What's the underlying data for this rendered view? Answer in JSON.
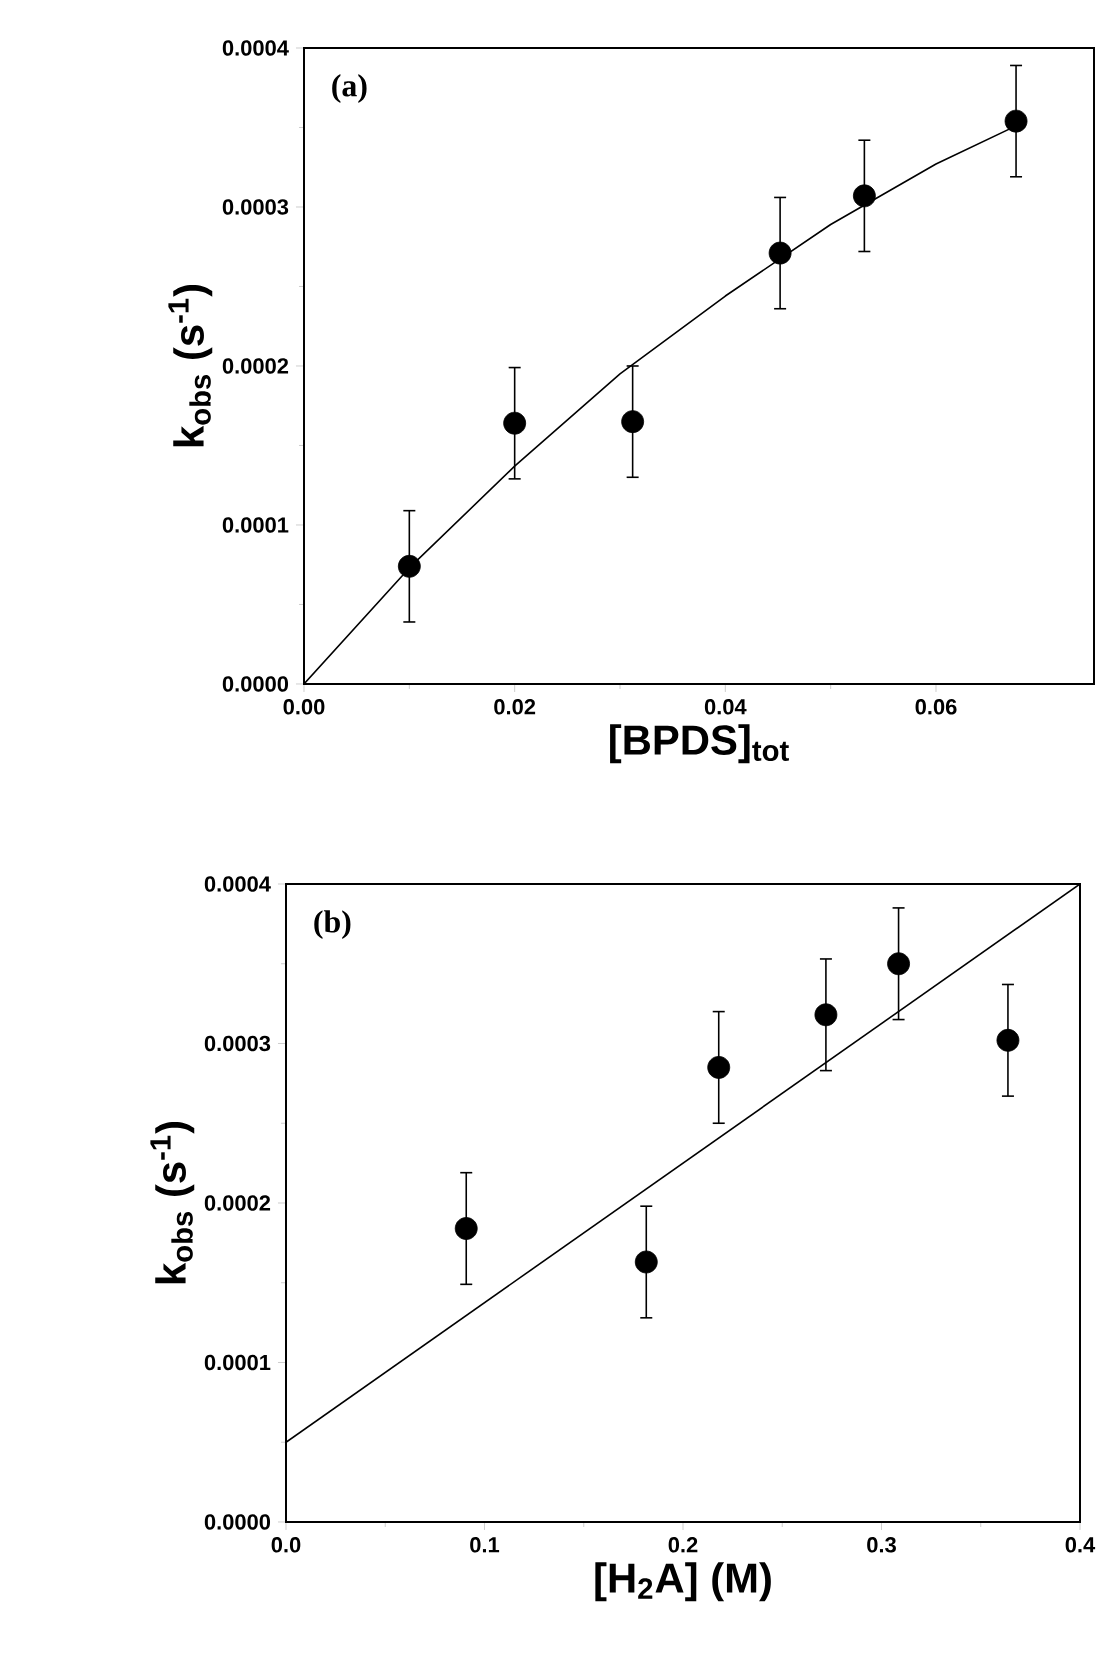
{
  "chart_data": [
    {
      "type": "scatter",
      "xlabel": "[BPDS]$_{tot}$",
      "ylabel": "k$_{obs}$ (s$^{-1}$)",
      "annotations": [
        "(a)"
      ],
      "xlim": [
        0,
        0.075
      ],
      "ylim": [
        0,
        0.0004
      ],
      "xticks": [
        {
          "value": 0,
          "label": "0.00"
        },
        {
          "value": 0.02,
          "label": "0.02"
        },
        {
          "value": 0.04,
          "label": "0.04"
        },
        {
          "value": 0.06,
          "label": "0.06"
        }
      ],
      "yticks": [
        {
          "value": 0,
          "label": "0.0000"
        },
        0.0001,
        0.0002,
        0.0003,
        0.0004
      ],
      "series": [
        {
          "color": "#000000",
          "marker": "circle",
          "x": [
            0.01,
            0.02,
            0.0312,
            0.0452,
            0.0532,
            0.0676
          ],
          "values": [
            7.4e-05,
            0.000164,
            0.000165,
            0.000271,
            0.000307,
            0.000354
          ],
          "errors": [
            3.5e-05,
            3.5e-05,
            3.5e-05,
            3.5e-05,
            3.5e-05,
            3.5e-05
          ]
        },
        {
          "type": "line",
          "color": "#000000",
          "marker": "none",
          "line_style": "solid",
          "x": [
            0,
            0.01,
            0.02,
            0.03,
            0.04,
            0.05,
            0.06,
            0.0676
          ],
          "values": [
            0,
            7.3e-05,
            0.000137,
            0.000195,
            0.000244,
            0.000289,
            0.000327,
            0.000351
          ]
        }
      ]
    },
    {
      "type": "scatter",
      "xlabel": "[H$_{2}$A] (M)",
      "ylabel": "k$_{obs}$ (s$^{-1}$)",
      "annotations": [
        "(b)"
      ],
      "xlim": [
        0,
        0.4
      ],
      "ylim": [
        0,
        0.0004
      ],
      "xticks": [
        {
          "value": 0,
          "label": "0.0"
        },
        {
          "value": 0.1,
          "label": "0.1"
        },
        {
          "value": 0.2,
          "label": "0.2"
        },
        {
          "value": 0.3,
          "label": "0.3"
        },
        {
          "value": 0.4,
          "label": "0.4"
        }
      ],
      "yticks": [
        {
          "value": 0,
          "label": "0.0000"
        },
        0.0001,
        0.0002,
        0.0003,
        0.0004
      ],
      "series": [
        {
          "color": "#000000",
          "marker": "circle",
          "x": [
            0.0908,
            0.1815,
            0.218,
            0.272,
            0.3086,
            0.3637
          ],
          "values": [
            0.000184,
            0.000163,
            0.000285,
            0.000318,
            0.00035,
            0.000302
          ],
          "errors": [
            3.5e-05,
            3.5e-05,
            3.5e-05,
            3.5e-05,
            3.5e-05,
            3.5e-05
          ]
        },
        {
          "type": "line",
          "color": "#000000",
          "marker": "none",
          "line_style": "solid",
          "x": [
            0,
            0.4
          ],
          "values": [
            5e-05,
            0.0004
          ]
        }
      ]
    }
  ]
}
